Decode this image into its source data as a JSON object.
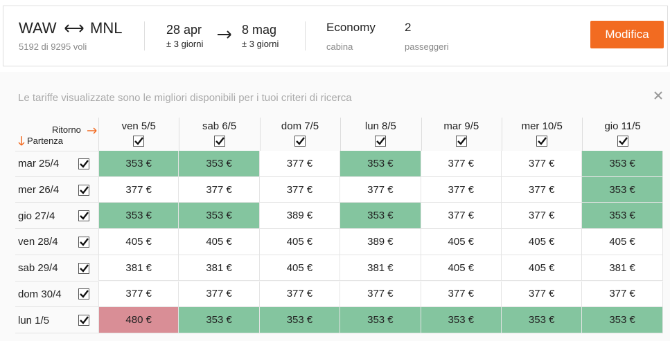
{
  "header": {
    "origin": "WAW",
    "destination": "MNL",
    "flights": "5192 di 9295 voli",
    "departure": {
      "date": "28 apr",
      "flex": "± 3 giorni"
    },
    "return": {
      "date": "8 mag",
      "flex": "± 3 giorni"
    },
    "cabin": {
      "value": "Economy",
      "label": "cabina"
    },
    "passengers": {
      "value": "2",
      "label": "passeggeri"
    },
    "button": "Modifica"
  },
  "notice": "Le tariffe visualizzate sono le migliori disponibili per i tuoi criteri di ricerca",
  "table": {
    "return_label": "Ritorno",
    "departure_label": "Partenza",
    "columns": [
      "ven 5/5",
      "sab 6/5",
      "dom 7/5",
      "lun 8/5",
      "mar 9/5",
      "mer 10/5",
      "gio 11/5"
    ],
    "rows": [
      {
        "label": "mar 25/4",
        "cells": [
          {
            "text": "353 €",
            "color": "#84c59f"
          },
          {
            "text": "353 €",
            "color": "#84c59f"
          },
          {
            "text": "377 €",
            "color": "#ffffff"
          },
          {
            "text": "353 €",
            "color": "#84c59f"
          },
          {
            "text": "377 €",
            "color": "#ffffff"
          },
          {
            "text": "377 €",
            "color": "#ffffff"
          },
          {
            "text": "353 €",
            "color": "#84c59f"
          }
        ]
      },
      {
        "label": "mer 26/4",
        "cells": [
          {
            "text": "377 €",
            "color": "#ffffff"
          },
          {
            "text": "377 €",
            "color": "#ffffff"
          },
          {
            "text": "377 €",
            "color": "#ffffff"
          },
          {
            "text": "377 €",
            "color": "#ffffff"
          },
          {
            "text": "377 €",
            "color": "#ffffff"
          },
          {
            "text": "377 €",
            "color": "#ffffff"
          },
          {
            "text": "353 €",
            "color": "#84c59f"
          }
        ]
      },
      {
        "label": "gio 27/4",
        "cells": [
          {
            "text": "353 €",
            "color": "#84c59f"
          },
          {
            "text": "353 €",
            "color": "#84c59f"
          },
          {
            "text": "389 €",
            "color": "#ffffff"
          },
          {
            "text": "353 €",
            "color": "#84c59f"
          },
          {
            "text": "377 €",
            "color": "#ffffff"
          },
          {
            "text": "377 €",
            "color": "#ffffff"
          },
          {
            "text": "353 €",
            "color": "#84c59f"
          }
        ]
      },
      {
        "label": "ven 28/4",
        "cells": [
          {
            "text": "405 €",
            "color": "#ffffff"
          },
          {
            "text": "405 €",
            "color": "#ffffff"
          },
          {
            "text": "405 €",
            "color": "#ffffff"
          },
          {
            "text": "389 €",
            "color": "#ffffff"
          },
          {
            "text": "405 €",
            "color": "#ffffff"
          },
          {
            "text": "405 €",
            "color": "#ffffff"
          },
          {
            "text": "405 €",
            "color": "#ffffff"
          }
        ]
      },
      {
        "label": "sab 29/4",
        "cells": [
          {
            "text": "381 €",
            "color": "#ffffff"
          },
          {
            "text": "381 €",
            "color": "#ffffff"
          },
          {
            "text": "405 €",
            "color": "#ffffff"
          },
          {
            "text": "381 €",
            "color": "#ffffff"
          },
          {
            "text": "405 €",
            "color": "#ffffff"
          },
          {
            "text": "405 €",
            "color": "#ffffff"
          },
          {
            "text": "381 €",
            "color": "#ffffff"
          }
        ]
      },
      {
        "label": "dom 30/4",
        "cells": [
          {
            "text": "377 €",
            "color": "#ffffff"
          },
          {
            "text": "377 €",
            "color": "#ffffff"
          },
          {
            "text": "377 €",
            "color": "#ffffff"
          },
          {
            "text": "377 €",
            "color": "#ffffff"
          },
          {
            "text": "377 €",
            "color": "#ffffff"
          },
          {
            "text": "377 €",
            "color": "#ffffff"
          },
          {
            "text": "377 €",
            "color": "#ffffff"
          }
        ]
      },
      {
        "label": "lun 1/5",
        "cells": [
          {
            "text": "480 €",
            "color": "#d98e96"
          },
          {
            "text": "353 €",
            "color": "#84c59f"
          },
          {
            "text": "353 €",
            "color": "#84c59f"
          },
          {
            "text": "353 €",
            "color": "#84c59f"
          },
          {
            "text": "353 €",
            "color": "#84c59f"
          },
          {
            "text": "353 €",
            "color": "#84c59f"
          },
          {
            "text": "353 €",
            "color": "#84c59f"
          }
        ]
      }
    ]
  }
}
